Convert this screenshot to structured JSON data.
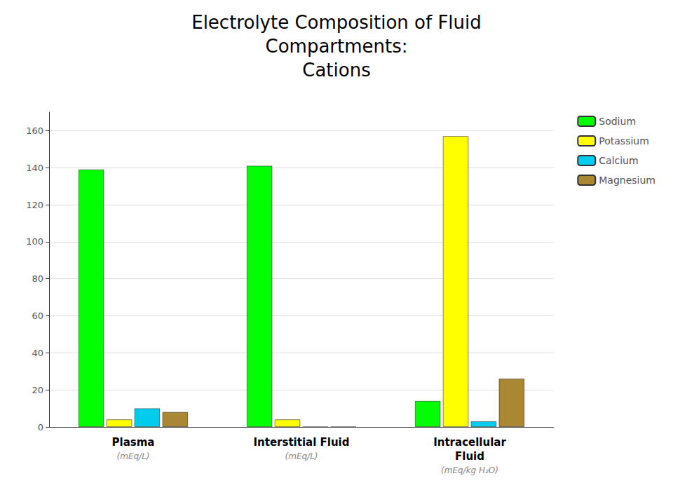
{
  "chart_data": {
    "type": "bar",
    "title": "Electrolyte Composition of Fluid\nCompartments:\nCations",
    "categories": [
      "Plasma",
      "Interstitial Fluid",
      "Intracellular\nFluid"
    ],
    "annotations": [
      {
        "category": "Plasma",
        "text": "(mEq/L)"
      },
      {
        "category": "Interstitial Fluid",
        "text": "(mEq/L)"
      },
      {
        "category": "Intracellular\nFluid",
        "text": "(mEq/kg H₂O)"
      }
    ],
    "series": [
      {
        "name": "Sodium",
        "color": "#00ff00",
        "values": [
          139,
          141,
          14
        ]
      },
      {
        "name": "Potassium",
        "color": "#ffff00",
        "values": [
          4,
          4,
          157
        ]
      },
      {
        "name": "Calcium",
        "color": "#00ccee",
        "values": [
          10,
          0,
          3
        ]
      },
      {
        "name": "Magnesium",
        "color": "#aa8833",
        "values": [
          8,
          0,
          26
        ]
      }
    ],
    "ylim": [
      0,
      170
    ],
    "yticks": [
      0,
      20,
      40,
      60,
      80,
      100,
      120,
      140,
      160
    ],
    "grid": true,
    "legend": "right"
  }
}
